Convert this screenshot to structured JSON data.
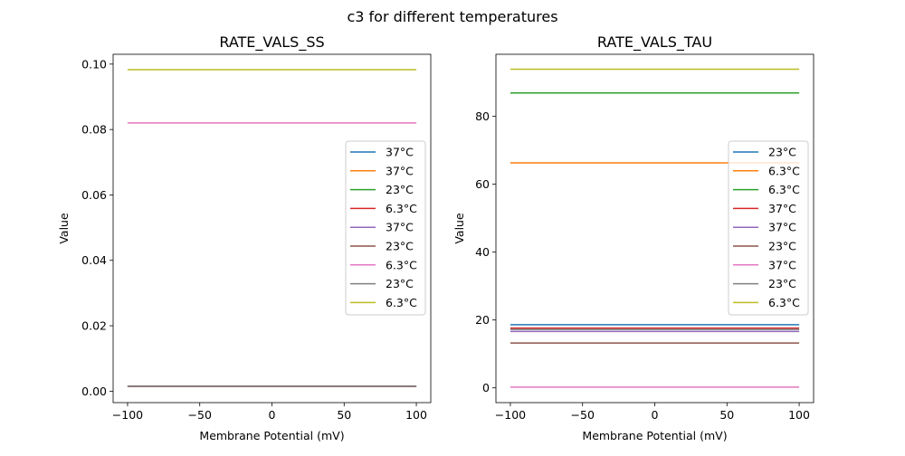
{
  "chart_data": {
    "suptitle": "c3 for different temperatures",
    "charts": [
      {
        "type": "line",
        "title": "RATE_VALS_SS",
        "xlabel": "Membrane Potential (mV)",
        "ylabel": "Value",
        "xlim": [
          -110,
          110
        ],
        "ylim": [
          -0.0035,
          0.103
        ],
        "xticks": [
          -100,
          -50,
          0,
          50,
          100
        ],
        "xtick_labels": [
          "−100",
          "−50",
          "0",
          "50",
          "100"
        ],
        "yticks": [
          0,
          0.02,
          0.04,
          0.06,
          0.08,
          0.1
        ],
        "ytick_labels": [
          "0.00",
          "0.02",
          "0.04",
          "0.06",
          "0.08",
          "0.10"
        ],
        "legend_position": "center-right",
        "x": [
          -100,
          100
        ],
        "series": [
          {
            "name": "37°C",
            "color": "#1f77b4",
            "value": 0.0015
          },
          {
            "name": "37°C",
            "color": "#ff7f0e",
            "value": 0.0015
          },
          {
            "name": "23°C",
            "color": "#2ca02c",
            "value": 0.0015
          },
          {
            "name": "6.3°C",
            "color": "#d62728",
            "value": 0.0015
          },
          {
            "name": "37°C",
            "color": "#9467bd",
            "value": 0.0015
          },
          {
            "name": "23°C",
            "color": "#8c564b",
            "value": 0.0015
          },
          {
            "name": "6.3°C",
            "color": "#e377c2",
            "value": 0.082
          },
          {
            "name": "23°C",
            "color": "#7f7f7f",
            "value": 0.0015
          },
          {
            "name": "6.3°C",
            "color": "#bcbd22",
            "value": 0.0983
          }
        ]
      },
      {
        "type": "line",
        "title": "RATE_VALS_TAU",
        "xlabel": "Membrane Potential (mV)",
        "ylabel": "Value",
        "xlim": [
          -110,
          110
        ],
        "ylim": [
          -4.35,
          98.3
        ],
        "xticks": [
          -100,
          -50,
          0,
          50,
          100
        ],
        "xtick_labels": [
          "−100",
          "−50",
          "0",
          "50",
          "100"
        ],
        "yticks": [
          0,
          20,
          40,
          60,
          80
        ],
        "ytick_labels": [
          "0",
          "20",
          "40",
          "60",
          "80"
        ],
        "legend_position": "center-right",
        "x": [
          -100,
          100
        ],
        "series": [
          {
            "name": "23°C",
            "color": "#1f77b4",
            "value": 18.6
          },
          {
            "name": "6.3°C",
            "color": "#ff7f0e",
            "value": 66.3
          },
          {
            "name": "6.3°C",
            "color": "#2ca02c",
            "value": 86.9
          },
          {
            "name": "37°C",
            "color": "#d62728",
            "value": 17.6
          },
          {
            "name": "37°C",
            "color": "#9467bd",
            "value": 16.6
          },
          {
            "name": "23°C",
            "color": "#8c564b",
            "value": 13.2
          },
          {
            "name": "37°C",
            "color": "#e377c2",
            "value": 0.2
          },
          {
            "name": "23°C",
            "color": "#7f7f7f",
            "value": 17.2
          },
          {
            "name": "6.3°C",
            "color": "#bcbd22",
            "value": 93.9
          }
        ]
      }
    ]
  }
}
